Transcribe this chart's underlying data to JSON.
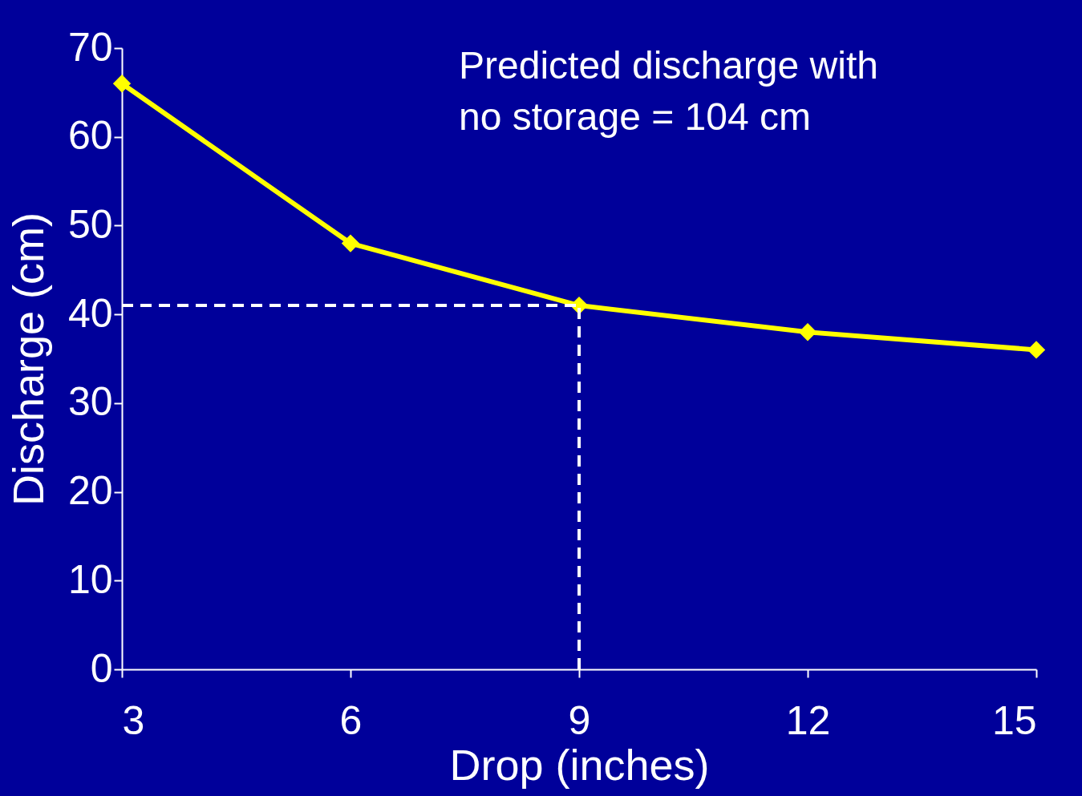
{
  "chart_data": {
    "type": "line",
    "xlabel": "Drop (inches)",
    "ylabel": "Discharge (cm)",
    "x": [
      3,
      6,
      9,
      12,
      15
    ],
    "series": [
      {
        "color": "#ffff00",
        "values": [
          66,
          48,
          41,
          38,
          36
        ]
      }
    ],
    "xlim": [
      3,
      15
    ],
    "xticks": [
      3,
      6,
      9,
      12,
      15
    ],
    "ylim": [
      0,
      70
    ],
    "yticks": [
      0,
      10,
      20,
      30,
      40,
      50,
      60,
      70
    ],
    "grid": false,
    "marker": "diamond",
    "line_style": "solid",
    "ref_lines": [
      {
        "axis": "x",
        "value": 9,
        "color": "#ffffff",
        "line_style": "dashed"
      },
      {
        "axis": "y",
        "value": 41,
        "color": "#ffffff",
        "line_style": "dashed"
      }
    ],
    "annotations": [
      "Predicted discharge with\nno storage = 104 cm"
    ]
  }
}
